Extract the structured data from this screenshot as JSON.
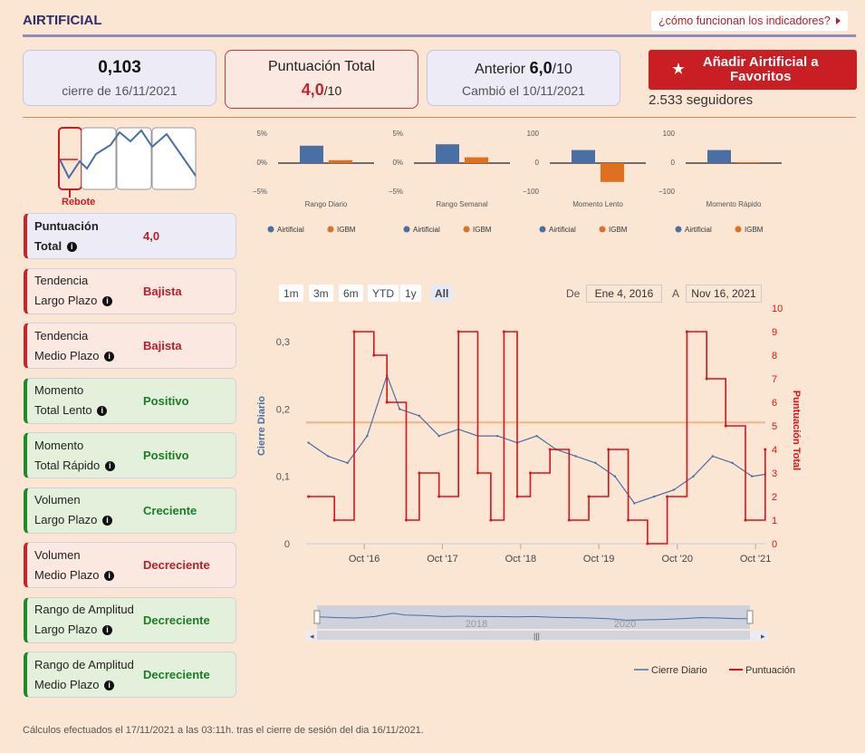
{
  "header": {
    "title": "AIRTIFICIAL",
    "help_link": "¿cómo funcionan los indicadores?"
  },
  "cards": {
    "price": "0,103",
    "price_caption": "cierre de 16/11/2021",
    "score_label": "Puntuación Total",
    "score_value": "4,0",
    "score_max": "/10",
    "prev_label": "Anterior",
    "prev_value": "6,0",
    "prev_max": "/10",
    "prev_caption": "Cambió el 10/11/2021"
  },
  "favorite": {
    "button_label": "Añadir Airtificial a Favoritos",
    "followers": "2.533 seguidores"
  },
  "pattern": {
    "label": "Rebote"
  },
  "indicators": [
    {
      "name1": "Puntuación",
      "name2": "Total",
      "value": "4,0",
      "type": "score"
    },
    {
      "name1": "Tendencia",
      "name2": "Largo Plazo",
      "value": "Bajista",
      "type": "neg"
    },
    {
      "name1": "Tendencia",
      "name2": "Medio Plazo",
      "value": "Bajista",
      "type": "neg"
    },
    {
      "name1": "Momento",
      "name2": "Total Lento",
      "value": "Positivo",
      "type": "pos"
    },
    {
      "name1": "Momento",
      "name2": "Total Rápido",
      "value": "Positivo",
      "type": "pos"
    },
    {
      "name1": "Volumen",
      "name2": "Largo Plazo",
      "value": "Creciente",
      "type": "pos"
    },
    {
      "name1": "Volumen",
      "name2": "Medio Plazo",
      "value": "Decreciente",
      "type": "neg"
    },
    {
      "name1": "Rango de Amplitud",
      "name2": "Largo Plazo",
      "value": "Decreciente",
      "type": "pos"
    },
    {
      "name1": "Rango de Amplitud",
      "name2": "Medio Plazo",
      "value": "Decreciente",
      "type": "pos"
    }
  ],
  "mini_charts": [
    {
      "title": "Rango Diario",
      "ticks": [
        "5%",
        "0%",
        "−5%"
      ],
      "a": 0.6,
      "b": 0.1
    },
    {
      "title": "Rango Semanal",
      "ticks": [
        "5%",
        "0%",
        "−5%"
      ],
      "a": 0.65,
      "b": 0.2
    },
    {
      "title": "Momento Lento",
      "ticks": [
        "100",
        "0",
        "−100"
      ],
      "a": 0.45,
      "b": -0.65
    },
    {
      "title": "Momento Rápido",
      "ticks": [
        "100",
        "0",
        "−100"
      ],
      "a": 0.45,
      "b": 0.03
    }
  ],
  "mini_legend": {
    "a": "Airtificial",
    "b": "IGBM"
  },
  "colors": {
    "blue": "#4a6fa5",
    "orange": "#e07020",
    "red": "#e0101a",
    "refline": "#f3b486"
  },
  "range_buttons": [
    "1m",
    "3m",
    "6m",
    "YTD",
    "1y",
    "All"
  ],
  "active_range": "All",
  "date_range": {
    "from_label": "De",
    "from": "Ene 4, 2016",
    "to_label": "A",
    "to": "Nov 16, 2021"
  },
  "main_chart": {
    "left_axis_label": "Cierre Diario",
    "right_axis_label": "Puntuación Total",
    "left_ticks": [
      "0",
      "0,1",
      "0,2",
      "0,3"
    ],
    "right_ticks": [
      "0",
      "1",
      "2",
      "3",
      "4",
      "5",
      "6",
      "7",
      "8",
      "9",
      "10"
    ],
    "x_ticks": [
      "Oct '16",
      "Oct '17",
      "Oct '18",
      "Oct '19",
      "Oct '20",
      "Oct '21"
    ],
    "navigator_labels": [
      "2018",
      "2020"
    ],
    "legend": {
      "close": "Cierre Diario",
      "score": "Puntuación"
    }
  },
  "chart_data": {
    "type": "line",
    "x_range": [
      "2016-01-04",
      "2021-11-16"
    ],
    "ylim_left": [
      0,
      0.35
    ],
    "ylim_right": [
      0,
      10
    ],
    "reference_line": 0.18,
    "series": [
      {
        "name": "Cierre Diario",
        "axis": "left",
        "x": [
          "2016-01",
          "2016-04",
          "2016-07",
          "2016-10",
          "2017-01",
          "2017-03",
          "2017-06",
          "2017-09",
          "2017-12",
          "2018-03",
          "2018-06",
          "2018-09",
          "2018-12",
          "2019-03",
          "2019-06",
          "2019-09",
          "2019-12",
          "2020-03",
          "2020-06",
          "2020-09",
          "2020-12",
          "2021-03",
          "2021-06",
          "2021-09",
          "2021-11"
        ],
        "values": [
          0.15,
          0.13,
          0.12,
          0.16,
          0.25,
          0.2,
          0.19,
          0.16,
          0.17,
          0.16,
          0.16,
          0.15,
          0.16,
          0.14,
          0.13,
          0.12,
          0.1,
          0.06,
          0.07,
          0.08,
          0.1,
          0.13,
          0.12,
          0.1,
          0.103
        ]
      },
      {
        "name": "Puntuación",
        "axis": "right",
        "x": [
          "2016-01",
          "2016-05",
          "2016-08",
          "2016-11",
          "2017-01",
          "2017-04",
          "2017-06",
          "2017-09",
          "2017-12",
          "2018-03",
          "2018-05",
          "2018-07",
          "2018-09",
          "2018-11",
          "2019-02",
          "2019-05",
          "2019-08",
          "2019-11",
          "2020-02",
          "2020-05",
          "2020-08",
          "2020-11",
          "2021-02",
          "2021-05",
          "2021-08",
          "2021-11"
        ],
        "values": [
          2,
          1,
          9,
          8,
          6,
          1,
          3,
          2,
          9,
          3,
          1,
          9,
          2,
          3,
          4,
          1,
          2,
          4,
          1,
          0,
          2,
          9,
          7,
          5,
          1,
          4
        ]
      }
    ]
  }
}
